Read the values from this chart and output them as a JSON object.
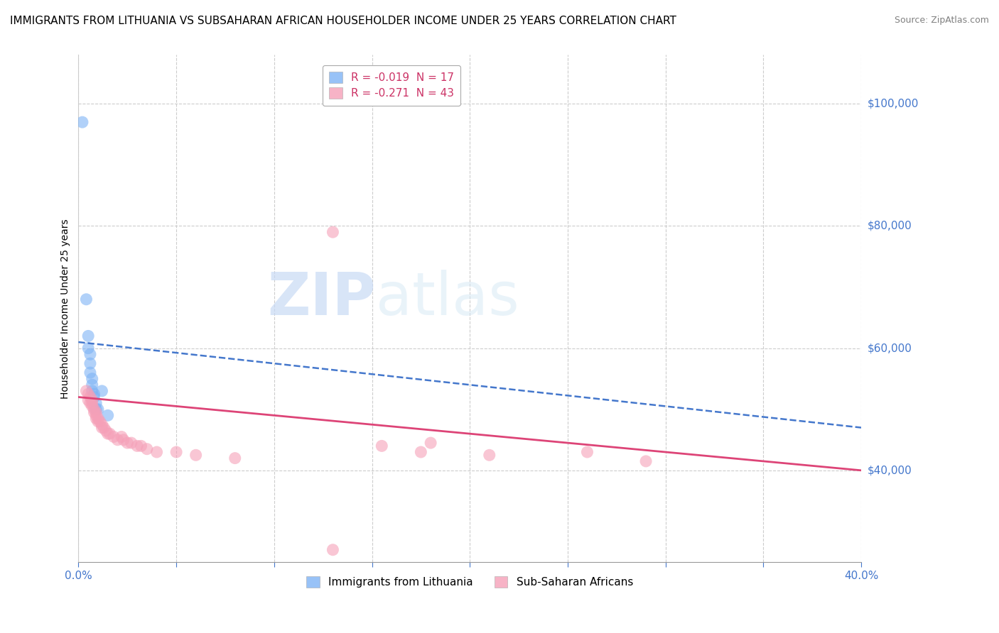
{
  "title": "IMMIGRANTS FROM LITHUANIA VS SUBSAHARAN AFRICAN HOUSEHOLDER INCOME UNDER 25 YEARS CORRELATION CHART",
  "source": "Source: ZipAtlas.com",
  "ylabel": "Householder Income Under 25 years",
  "xlim": [
    0.0,
    0.4
  ],
  "ylim": [
    25000,
    108000
  ],
  "yticks": [
    40000,
    60000,
    80000,
    100000
  ],
  "xtick_positions": [
    0.0,
    0.05,
    0.1,
    0.15,
    0.2,
    0.25,
    0.3,
    0.35,
    0.4
  ],
  "xtick_labels_show": [
    "0.0%",
    "",
    "",
    "",
    "",
    "",
    "",
    "",
    "40.0%"
  ],
  "watermark_left": "ZIP",
  "watermark_right": "atlas",
  "legend_entry_blue": "R = -0.019  N = 17",
  "legend_entry_pink": "R = -0.271  N = 43",
  "legend_label_blue": "Immigrants from Lithuania",
  "legend_label_pink": "Sub-Saharan Africans",
  "blue_scatter": [
    [
      0.002,
      97000
    ],
    [
      0.004,
      68000
    ],
    [
      0.005,
      62000
    ],
    [
      0.005,
      60000
    ],
    [
      0.006,
      59000
    ],
    [
      0.006,
      57500
    ],
    [
      0.006,
      56000
    ],
    [
      0.007,
      55000
    ],
    [
      0.007,
      54000
    ],
    [
      0.007,
      53000
    ],
    [
      0.008,
      52500
    ],
    [
      0.008,
      52000
    ],
    [
      0.009,
      51000
    ],
    [
      0.009,
      50000
    ],
    [
      0.01,
      50000
    ],
    [
      0.012,
      53000
    ],
    [
      0.015,
      49000
    ]
  ],
  "pink_scatter": [
    [
      0.004,
      53000
    ],
    [
      0.005,
      52500
    ],
    [
      0.005,
      51500
    ],
    [
      0.006,
      52000
    ],
    [
      0.006,
      51000
    ],
    [
      0.007,
      51500
    ],
    [
      0.007,
      51000
    ],
    [
      0.007,
      50500
    ],
    [
      0.008,
      50000
    ],
    [
      0.008,
      49500
    ],
    [
      0.009,
      49000
    ],
    [
      0.009,
      49500
    ],
    [
      0.009,
      48500
    ],
    [
      0.01,
      48500
    ],
    [
      0.01,
      48000
    ],
    [
      0.011,
      48000
    ],
    [
      0.012,
      47500
    ],
    [
      0.012,
      47000
    ],
    [
      0.013,
      47000
    ],
    [
      0.014,
      46500
    ],
    [
      0.015,
      46000
    ],
    [
      0.016,
      46000
    ],
    [
      0.018,
      45500
    ],
    [
      0.02,
      45000
    ],
    [
      0.022,
      45500
    ],
    [
      0.023,
      45000
    ],
    [
      0.025,
      44500
    ],
    [
      0.027,
      44500
    ],
    [
      0.03,
      44000
    ],
    [
      0.032,
      44000
    ],
    [
      0.035,
      43500
    ],
    [
      0.04,
      43000
    ],
    [
      0.05,
      43000
    ],
    [
      0.06,
      42500
    ],
    [
      0.08,
      42000
    ],
    [
      0.13,
      79000
    ],
    [
      0.13,
      27000
    ],
    [
      0.155,
      44000
    ],
    [
      0.175,
      43000
    ],
    [
      0.18,
      44500
    ],
    [
      0.21,
      42500
    ],
    [
      0.26,
      43000
    ],
    [
      0.29,
      41500
    ]
  ],
  "blue_line_x": [
    0.0,
    0.4
  ],
  "blue_line_y": [
    61000,
    47000
  ],
  "pink_line_x": [
    0.0,
    0.4
  ],
  "pink_line_y": [
    52000,
    40000
  ],
  "blue_color": "#7eb3f5",
  "pink_color": "#f5a0b8",
  "blue_line_color": "#4477cc",
  "pink_line_color": "#dd4477",
  "grid_color": "#cccccc",
  "bg_color": "#ffffff",
  "right_label_color": "#4477cc",
  "x_label_color": "#4477cc",
  "title_fontsize": 11,
  "axis_label_fontsize": 10,
  "tick_fontsize": 11,
  "source_fontsize": 9,
  "legend_fontsize": 11
}
